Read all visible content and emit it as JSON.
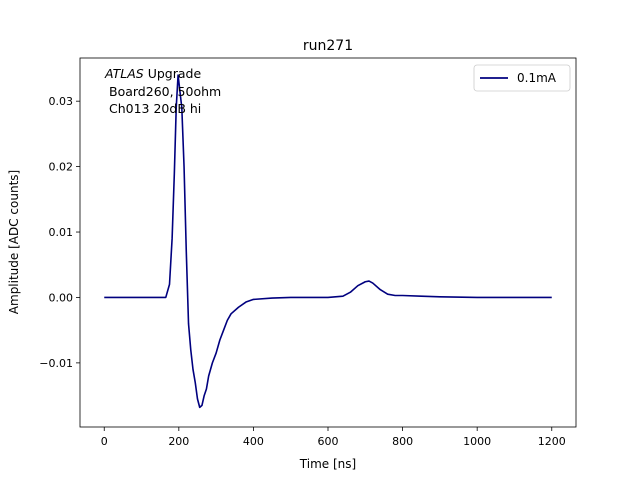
{
  "chart_data": {
    "type": "line",
    "title": "run271",
    "xlabel": "Time [ns]",
    "ylabel": "Amplitude [ADC counts]",
    "xlim": [
      -65,
      1265
    ],
    "ylim": [
      -0.0198,
      0.0366
    ],
    "xticks": [
      0,
      200,
      400,
      600,
      800,
      1000,
      1200
    ],
    "xtick_labels": [
      "0",
      "200",
      "400",
      "600",
      "800",
      "1000",
      "1200"
    ],
    "yticks": [
      -0.01,
      0.0,
      0.01,
      0.02,
      0.03
    ],
    "ytick_labels": [
      "−0.01",
      "0.00",
      "0.01",
      "0.02",
      "0.03"
    ],
    "grid": false,
    "legend_position": "top-right",
    "annotation": {
      "italic": "ATLAS",
      "line1_rest": " Upgrade",
      "line2": "Board260, 50ohm",
      "line3": "Ch013 20dB hi"
    },
    "series": [
      {
        "name": "0.1mA",
        "color": "#00007f",
        "x": [
          0,
          50,
          100,
          150,
          165,
          175,
          182,
          188,
          193,
          198,
          202,
          208,
          214,
          220,
          226,
          232,
          238,
          244,
          250,
          256,
          262,
          268,
          274,
          280,
          290,
          300,
          310,
          320,
          330,
          340,
          360,
          380,
          400,
          450,
          500,
          550,
          600,
          640,
          660,
          680,
          700,
          710,
          720,
          740,
          760,
          780,
          800,
          850,
          900,
          1000,
          1100,
          1200
        ],
        "y": [
          0.0,
          0.0,
          0.0,
          0.0,
          0.0,
          0.002,
          0.009,
          0.019,
          0.029,
          0.034,
          0.032,
          0.029,
          0.02,
          0.007,
          -0.004,
          -0.008,
          -0.011,
          -0.013,
          -0.0155,
          -0.0168,
          -0.0165,
          -0.015,
          -0.014,
          -0.012,
          -0.01,
          -0.0085,
          -0.0065,
          -0.005,
          -0.0035,
          -0.0025,
          -0.0015,
          -0.0007,
          -0.0003,
          -0.0001,
          0.0,
          0.0,
          0.0,
          0.0002,
          0.0008,
          0.0018,
          0.0024,
          0.0025,
          0.0022,
          0.0012,
          0.0005,
          0.0003,
          0.0003,
          0.0002,
          0.0001,
          0.0,
          0.0,
          0.0
        ]
      }
    ]
  }
}
